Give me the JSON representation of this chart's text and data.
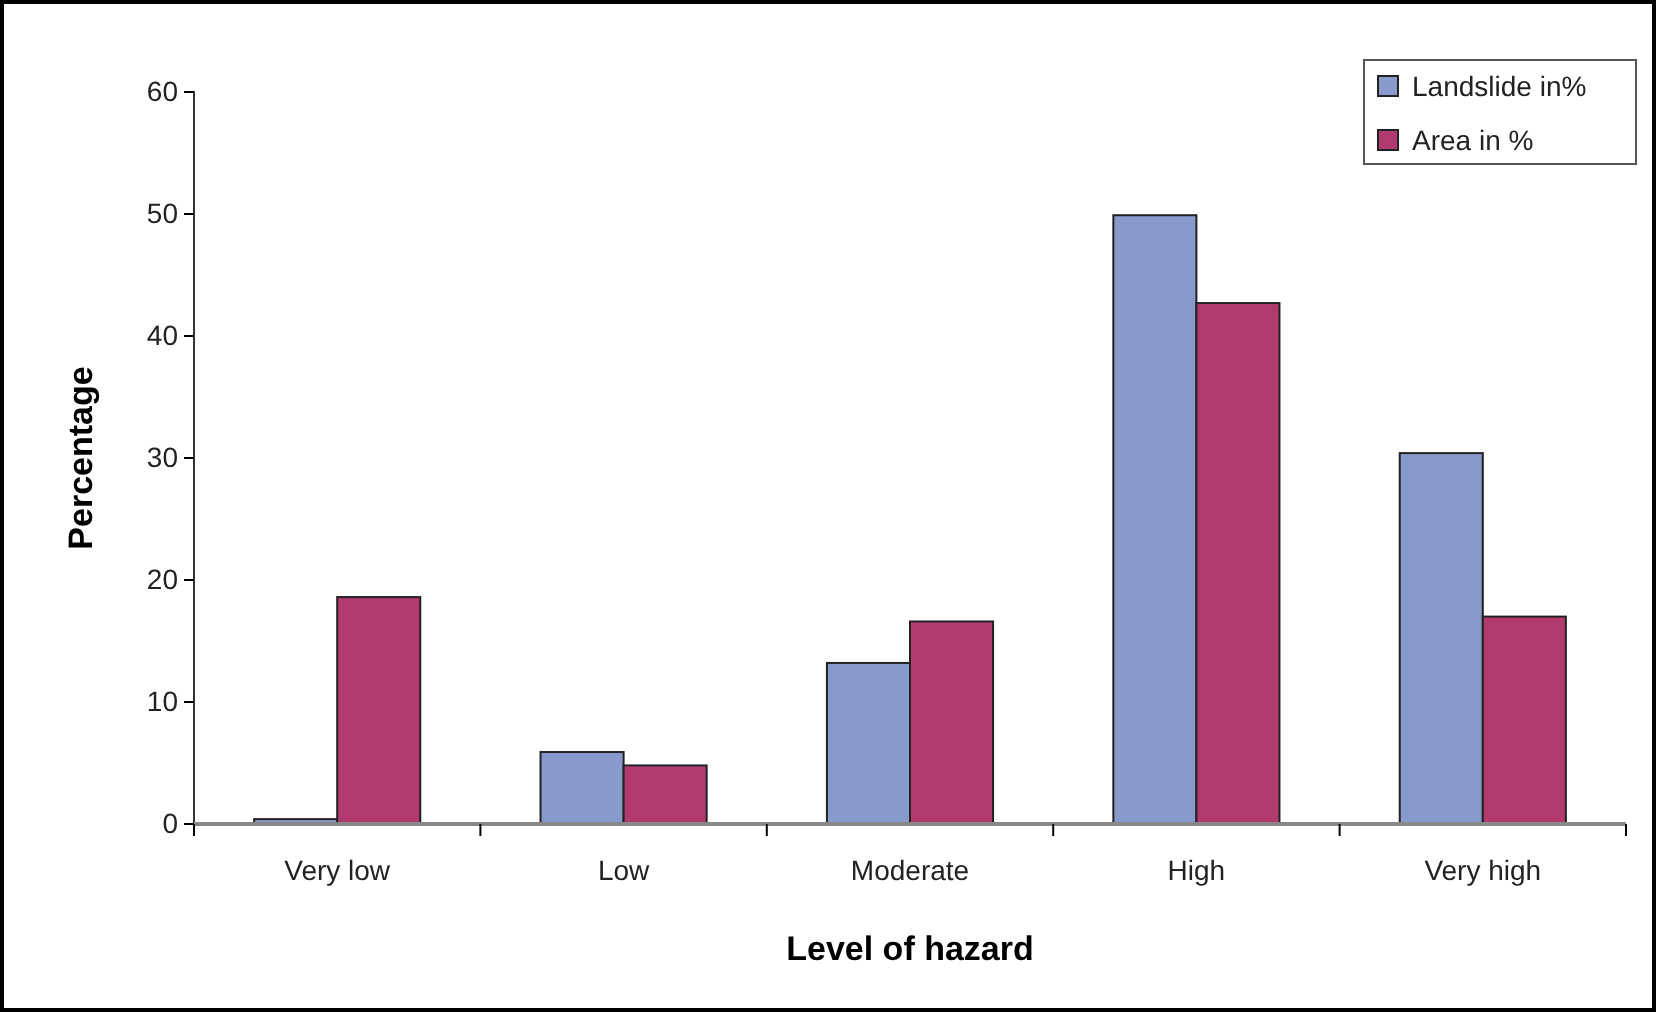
{
  "chart_data": {
    "type": "bar",
    "xlabel": "Level of hazard",
    "ylabel": "Percentage",
    "categories": [
      "Very low",
      "Low",
      "Moderate",
      "High",
      "Very high"
    ],
    "series": [
      {
        "name": "Landslide in%",
        "color": "#8899cc",
        "values": [
          0.4,
          5.9,
          13.2,
          49.9,
          30.4
        ]
      },
      {
        "name": "Area in %",
        "color": "#b33a6e",
        "values": [
          18.6,
          4.8,
          16.6,
          42.7,
          17.0
        ]
      }
    ],
    "ylim": [
      0,
      60
    ],
    "yticks": [
      0,
      10,
      20,
      30,
      40,
      50,
      60
    ],
    "grid": false,
    "legend": "top right"
  }
}
